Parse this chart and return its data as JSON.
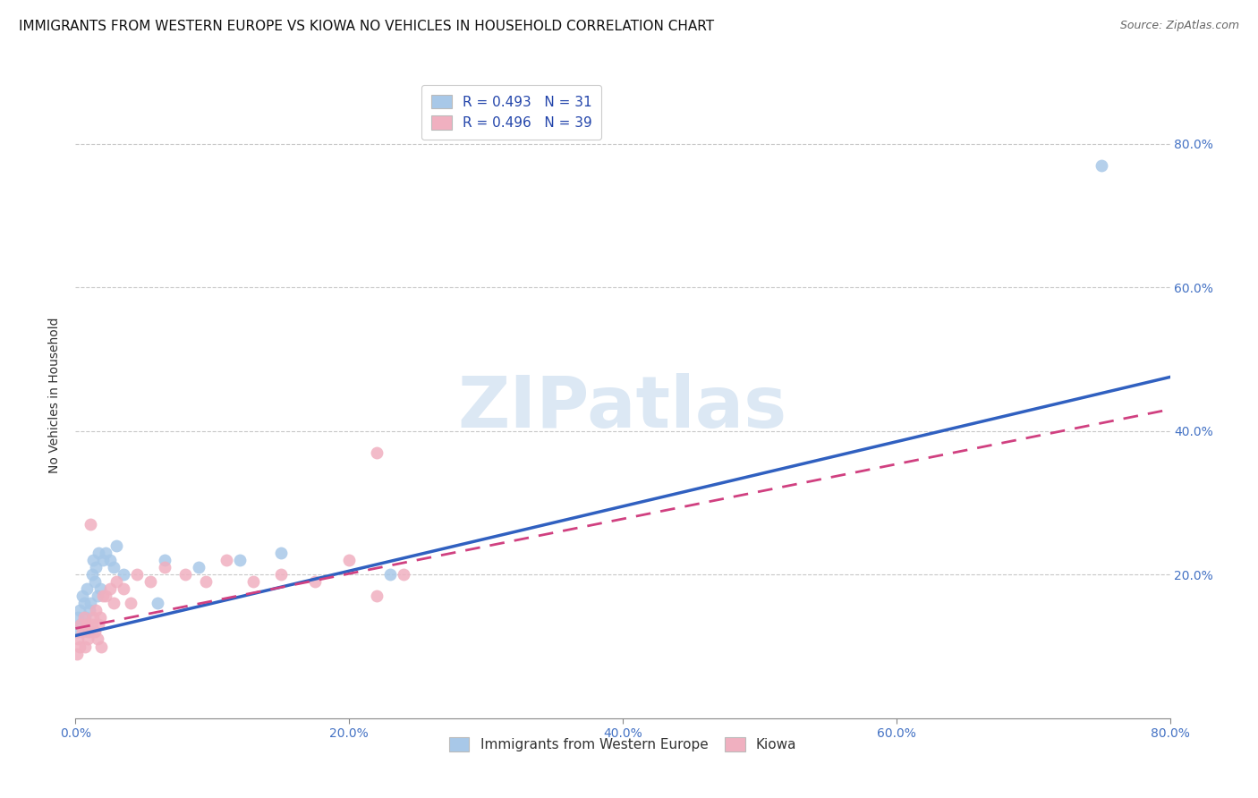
{
  "title": "IMMIGRANTS FROM WESTERN EUROPE VS KIOWA NO VEHICLES IN HOUSEHOLD CORRELATION CHART",
  "source": "Source: ZipAtlas.com",
  "xlabel_blue": "Immigrants from Western Europe",
  "xlabel_pink": "Kiowa",
  "ylabel": "No Vehicles in Household",
  "xlim": [
    0.0,
    0.8
  ],
  "ylim": [
    0.0,
    0.9
  ],
  "xticks": [
    0.0,
    0.2,
    0.4,
    0.6,
    0.8
  ],
  "yticks": [
    0.2,
    0.4,
    0.6,
    0.8
  ],
  "ytick_labels_right": [
    "20.0%",
    "40.0%",
    "60.0%",
    "80.0%"
  ],
  "xtick_labels": [
    "0.0%",
    "20.0%",
    "40.0%",
    "60.0%",
    "80.0%"
  ],
  "legend_blue_R": "R = 0.493",
  "legend_blue_N": "N = 31",
  "legend_pink_R": "R = 0.496",
  "legend_pink_N": "N = 39",
  "blue_color": "#a8c8e8",
  "blue_line_color": "#3060c0",
  "pink_color": "#f0b0c0",
  "pink_line_color": "#d04080",
  "watermark_text": "ZIPatlas",
  "blue_scatter_x": [
    0.001,
    0.002,
    0.003,
    0.004,
    0.005,
    0.006,
    0.007,
    0.008,
    0.009,
    0.01,
    0.011,
    0.012,
    0.013,
    0.014,
    0.015,
    0.016,
    0.017,
    0.018,
    0.02,
    0.022,
    0.025,
    0.028,
    0.03,
    0.035,
    0.06,
    0.065,
    0.09,
    0.12,
    0.15,
    0.23,
    0.75
  ],
  "blue_scatter_y": [
    0.12,
    0.14,
    0.15,
    0.13,
    0.17,
    0.16,
    0.14,
    0.18,
    0.12,
    0.15,
    0.16,
    0.2,
    0.22,
    0.19,
    0.21,
    0.17,
    0.23,
    0.18,
    0.22,
    0.23,
    0.22,
    0.21,
    0.24,
    0.2,
    0.16,
    0.22,
    0.21,
    0.22,
    0.23,
    0.2,
    0.77
  ],
  "pink_scatter_x": [
    0.001,
    0.002,
    0.003,
    0.004,
    0.005,
    0.006,
    0.007,
    0.008,
    0.009,
    0.01,
    0.011,
    0.012,
    0.013,
    0.014,
    0.015,
    0.016,
    0.017,
    0.018,
    0.019,
    0.02,
    0.022,
    0.025,
    0.028,
    0.03,
    0.035,
    0.04,
    0.045,
    0.055,
    0.065,
    0.08,
    0.095,
    0.11,
    0.13,
    0.15,
    0.175,
    0.2,
    0.22,
    0.24,
    0.22
  ],
  "pink_scatter_y": [
    0.09,
    0.11,
    0.1,
    0.13,
    0.12,
    0.14,
    0.1,
    0.13,
    0.11,
    0.12,
    0.27,
    0.13,
    0.14,
    0.12,
    0.15,
    0.11,
    0.13,
    0.14,
    0.1,
    0.17,
    0.17,
    0.18,
    0.16,
    0.19,
    0.18,
    0.16,
    0.2,
    0.19,
    0.21,
    0.2,
    0.19,
    0.22,
    0.19,
    0.2,
    0.19,
    0.22,
    0.37,
    0.2,
    0.17
  ],
  "blue_line_x": [
    0.0,
    0.8
  ],
  "blue_line_y": [
    0.115,
    0.475
  ],
  "pink_line_x": [
    0.0,
    0.8
  ],
  "pink_line_y": [
    0.125,
    0.43
  ],
  "grid_color": "#c8c8c8",
  "background_color": "#ffffff",
  "title_fontsize": 11,
  "axis_label_fontsize": 10,
  "tick_fontsize": 10,
  "tick_color": "#4472c4",
  "legend_text_color": "#2244aa",
  "legend_fontsize": 11,
  "source_fontsize": 9
}
